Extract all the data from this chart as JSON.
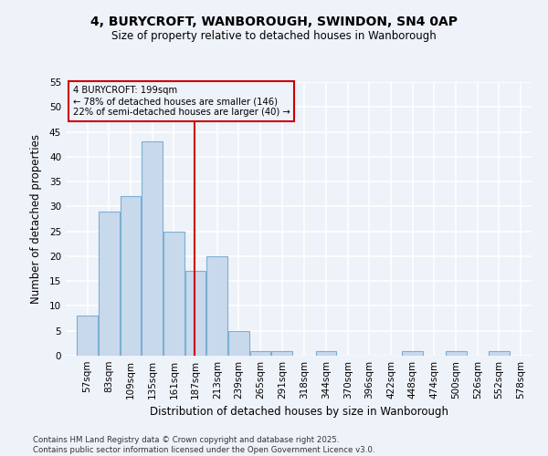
{
  "title_line1": "4, BURYCROFT, WANBOROUGH, SWINDON, SN4 0AP",
  "title_line2": "Size of property relative to detached houses in Wanborough",
  "xlabel": "Distribution of detached houses by size in Wanborough",
  "ylabel": "Number of detached properties",
  "bar_color": "#c9d9ec",
  "bar_edge_color": "#7bafd4",
  "bins": [
    57,
    83,
    109,
    135,
    161,
    187,
    213,
    239,
    265,
    291,
    318,
    344,
    370,
    396,
    422,
    448,
    474,
    500,
    526,
    552,
    578
  ],
  "counts": [
    8,
    29,
    32,
    43,
    25,
    17,
    20,
    5,
    1,
    1,
    0,
    1,
    0,
    0,
    0,
    1,
    0,
    1,
    0,
    1
  ],
  "tick_labels": [
    "57sqm",
    "83sqm",
    "109sqm",
    "135sqm",
    "161sqm",
    "187sqm",
    "213sqm",
    "239sqm",
    "265sqm",
    "291sqm",
    "318sqm",
    "344sqm",
    "370sqm",
    "396sqm",
    "422sqm",
    "448sqm",
    "474sqm",
    "500sqm",
    "526sqm",
    "552sqm",
    "578sqm"
  ],
  "property_size": 199,
  "property_label": "4 BURYCROFT: 199sqm",
  "annotation_line1": "← 78% of detached houses are smaller (146)",
  "annotation_line2": "22% of semi-detached houses are larger (40) →",
  "vline_color": "#cc0000",
  "annotation_box_edge_color": "#cc0000",
  "ylim": [
    0,
    55
  ],
  "yticks": [
    0,
    5,
    10,
    15,
    20,
    25,
    30,
    35,
    40,
    45,
    50,
    55
  ],
  "background_color": "#eef2f9",
  "grid_color": "#ffffff",
  "footer_line1": "Contains HM Land Registry data © Crown copyright and database right 2025.",
  "footer_line2": "Contains public sector information licensed under the Open Government Licence v3.0."
}
